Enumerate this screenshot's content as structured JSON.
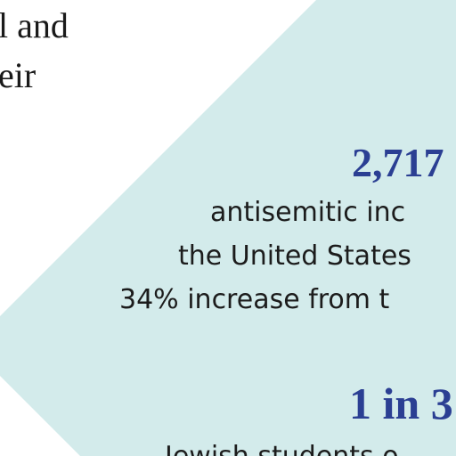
{
  "header": {
    "lines": [
      "l and",
      "eir"
    ]
  },
  "stats": [
    {
      "figure": "2,717",
      "lines": [
        "antisemitic inc",
        "the United States",
        "34% increase from t"
      ]
    },
    {
      "figure": "1 in 3",
      "lines": [
        "Jewish students o"
      ]
    }
  ]
}
